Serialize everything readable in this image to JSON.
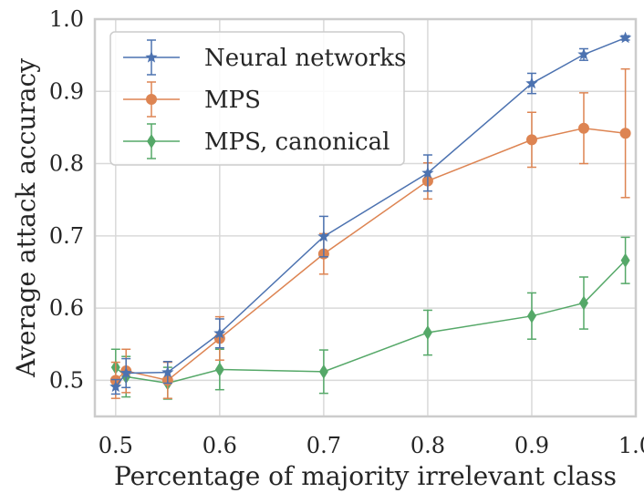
{
  "chart_data": {
    "type": "line",
    "xlabel": "Percentage of majority irrelevant class",
    "ylabel": "Average attack accuracy",
    "xlim": [
      0.48,
      1.0
    ],
    "ylim": [
      0.45,
      1.0
    ],
    "xticks": [
      0.5,
      0.6,
      0.7,
      0.8,
      0.9,
      1.0
    ],
    "xtick_labels": [
      "0.5",
      "0.6",
      "0.7",
      "0.8",
      "0.9",
      "1.0"
    ],
    "yticks": [
      0.5,
      0.6,
      0.7,
      0.8,
      0.9,
      1.0
    ],
    "ytick_labels": [
      "0.5",
      "0.6",
      "0.7",
      "0.8",
      "0.9",
      "1.0"
    ],
    "grid": true,
    "legend_position": "upper-left",
    "series": [
      {
        "name": "Neural networks",
        "color": "#4c72b0",
        "marker": "star",
        "x": [
          0.5,
          0.51,
          0.55,
          0.6,
          0.7,
          0.8,
          0.9,
          0.95,
          0.99
        ],
        "y": [
          0.491,
          0.51,
          0.511,
          0.565,
          0.699,
          0.787,
          0.911,
          0.951,
          0.974
        ],
        "err": [
          0.01,
          0.02,
          0.015,
          0.02,
          0.028,
          0.025,
          0.014,
          0.008,
          0.003
        ]
      },
      {
        "name": "MPS",
        "color": "#dd8452",
        "marker": "circle",
        "x": [
          0.5,
          0.51,
          0.55,
          0.6,
          0.7,
          0.8,
          0.9,
          0.95,
          0.99
        ],
        "y": [
          0.5,
          0.513,
          0.5,
          0.558,
          0.675,
          0.776,
          0.833,
          0.849,
          0.842
        ],
        "err": [
          0.025,
          0.03,
          0.025,
          0.03,
          0.028,
          0.025,
          0.038,
          0.049,
          0.089
        ]
      },
      {
        "name": "MPS, canonical",
        "color": "#55a868",
        "marker": "diamond",
        "x": [
          0.5,
          0.51,
          0.55,
          0.6,
          0.7,
          0.8,
          0.9,
          0.95,
          0.99
        ],
        "y": [
          0.518,
          0.505,
          0.496,
          0.515,
          0.512,
          0.566,
          0.589,
          0.607,
          0.666
        ],
        "err": [
          0.025,
          0.028,
          0.022,
          0.028,
          0.03,
          0.031,
          0.032,
          0.036,
          0.032
        ]
      }
    ]
  }
}
